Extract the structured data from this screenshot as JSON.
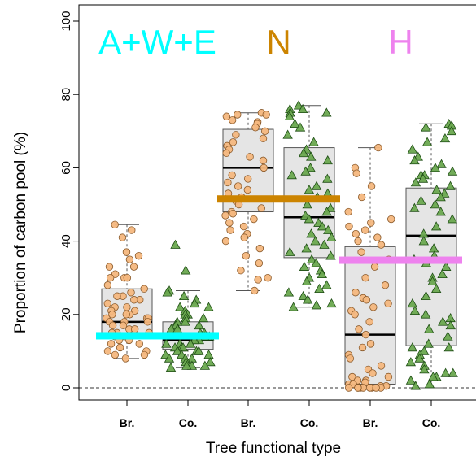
{
  "chart_data": {
    "type": "box",
    "xlabel": "Tree functional type",
    "ylabel": "Proportion of carbon pool (%)",
    "ylim": [
      0,
      100
    ],
    "yticks": [
      0,
      20,
      40,
      60,
      80,
      100
    ],
    "reference_line": 0,
    "categories": [
      "Br.",
      "Co.",
      "Br.",
      "Co.",
      "Br.",
      "Co."
    ],
    "point_colors": {
      "Br.": "#f4b77e",
      "Co.": "#6aa84f"
    },
    "point_shapes": {
      "Br.": "circle",
      "Co.": "triangle"
    },
    "groups": [
      {
        "label": "A+W+E",
        "color": "#00ffff",
        "mean": 14.2,
        "categories": [
          0,
          1
        ]
      },
      {
        "label": "N",
        "color": "#cc8400",
        "mean": 51.5,
        "categories": [
          2,
          3
        ]
      },
      {
        "label": "H",
        "color": "#ee82ee",
        "mean": 34.8,
        "categories": [
          4,
          5
        ]
      }
    ],
    "boxes": [
      {
        "min": 8,
        "q1": 14,
        "median": 18,
        "q3": 27,
        "max": 44.5
      },
      {
        "min": 5.5,
        "q1": 10.5,
        "median": 13,
        "q3": 18,
        "max": 26.5
      },
      {
        "min": 26.5,
        "q1": 48,
        "median": 60,
        "q3": 70.5,
        "max": 75
      },
      {
        "min": 22,
        "q1": 35.5,
        "median": 46.5,
        "q3": 65.5,
        "max": 77
      },
      {
        "min": 0,
        "q1": 1,
        "median": 14.5,
        "q3": 38.5,
        "max": 65.5
      },
      {
        "min": 0,
        "q1": 11.5,
        "median": 41.5,
        "q3": 54.5,
        "max": 72
      }
    ],
    "points": [
      [
        37,
        35,
        33,
        31,
        30,
        30,
        28,
        27,
        26,
        25,
        25,
        24,
        24,
        23,
        22,
        22,
        21,
        21,
        20,
        20,
        20,
        19,
        19,
        19,
        18,
        18,
        18,
        17,
        17,
        16,
        16,
        15,
        15,
        15,
        14,
        14,
        13,
        13,
        12,
        12,
        11,
        11,
        10,
        10,
        9,
        9,
        8,
        44.5,
        43,
        41,
        36,
        33,
        30
      ],
      [
        39,
        32,
        26.5,
        26,
        25,
        24,
        23,
        22,
        22,
        21,
        20,
        20,
        19,
        19,
        18,
        18,
        17,
        17,
        16,
        16,
        15,
        15,
        14,
        14,
        14,
        13,
        13,
        12,
        12,
        12,
        11,
        11,
        11,
        10,
        10,
        10,
        9,
        9,
        9,
        8,
        8,
        8,
        7,
        7,
        6,
        6,
        6,
        5.5
      ],
      [
        75,
        74.5,
        74.5,
        74,
        73,
        72.5,
        72,
        71,
        70,
        69,
        68,
        67,
        66,
        65,
        64,
        63,
        62,
        60,
        58,
        57,
        56,
        55,
        54,
        53,
        52,
        51,
        50,
        49,
        48,
        47.5,
        47,
        46,
        45,
        44,
        43,
        42,
        41,
        40,
        38,
        36,
        34,
        32,
        30,
        29.5,
        26.5
      ],
      [
        77,
        76,
        76,
        75,
        75,
        74,
        72,
        71,
        69,
        67,
        65,
        64,
        63,
        62,
        60,
        59,
        58,
        57,
        55,
        54,
        53,
        52,
        50,
        49,
        48,
        47,
        46,
        45,
        44,
        43,
        42,
        41,
        40,
        39,
        38,
        37,
        36,
        35,
        34,
        33,
        32,
        31,
        30,
        29,
        28,
        27,
        26,
        25,
        24,
        23,
        22.5,
        22
      ],
      [
        65.5,
        60,
        58.5,
        55,
        52,
        48,
        46,
        45,
        44,
        43,
        42,
        41,
        40,
        39,
        37,
        35,
        33,
        30,
        28,
        26,
        24.5,
        24,
        23,
        22,
        21,
        20,
        18,
        16,
        14.5,
        12,
        11,
        9,
        8,
        6,
        5,
        4,
        3,
        3,
        2,
        2,
        1.5,
        1,
        1,
        0.5,
        0.5,
        0,
        0,
        0,
        0,
        0,
        0,
        0,
        0,
        0
      ],
      [
        72,
        71.5,
        71,
        70,
        68,
        67,
        65,
        63,
        62,
        61,
        60,
        59,
        58,
        58,
        57,
        56,
        55,
        54,
        53,
        52,
        51,
        50,
        49,
        48,
        46,
        44,
        42,
        40,
        38,
        36,
        35,
        34,
        33,
        31,
        30,
        29,
        27,
        25,
        23,
        21,
        20,
        19,
        18,
        17,
        16,
        14,
        12,
        11,
        11,
        10,
        9,
        8,
        7,
        6,
        5,
        4,
        4,
        3,
        3,
        2,
        1,
        0.5
      ]
    ]
  }
}
